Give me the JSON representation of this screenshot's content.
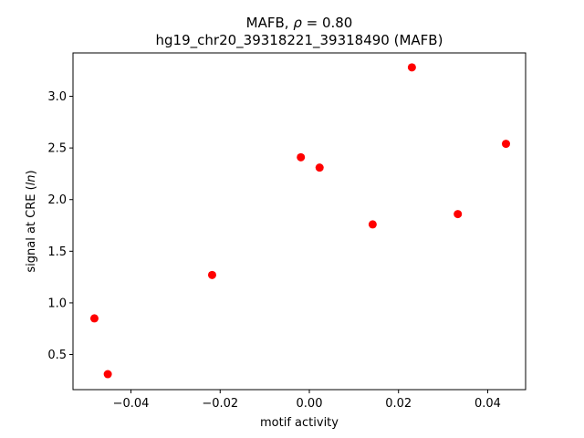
{
  "chart_data": {
    "type": "scatter",
    "title_main": "MAFB, ",
    "title_rho": "ρ",
    "title_eq": " = 0.80",
    "subtitle": "hg19_chr20_39318221_39318490 (MAFB)",
    "xlabel": "motif activity",
    "ylabel_prefix": "signal at CRE (",
    "ylabel_italic": "ln",
    "ylabel_suffix": ")",
    "xlim": [
      -0.053,
      0.0485
    ],
    "ylim": [
      0.16,
      3.42
    ],
    "xticks": [
      -0.04,
      -0.02,
      0.0,
      0.02,
      0.04
    ],
    "xtick_labels": [
      "−0.04",
      "−0.02",
      "0.00",
      "0.02",
      "0.04"
    ],
    "yticks": [
      0.5,
      1.0,
      1.5,
      2.0,
      2.5,
      3.0
    ],
    "ytick_labels": [
      "0.5",
      "1.0",
      "1.5",
      "2.0",
      "2.5",
      "3.0"
    ],
    "marker_color": "#ff0000",
    "grid": false,
    "points": [
      {
        "x": -0.0482,
        "y": 0.85
      },
      {
        "x": -0.0452,
        "y": 0.31
      },
      {
        "x": -0.0218,
        "y": 1.27
      },
      {
        "x": -0.0019,
        "y": 2.41
      },
      {
        "x": 0.0023,
        "y": 2.31
      },
      {
        "x": 0.0142,
        "y": 1.76
      },
      {
        "x": 0.023,
        "y": 3.28
      },
      {
        "x": 0.0333,
        "y": 1.86
      },
      {
        "x": 0.0441,
        "y": 2.54
      }
    ]
  }
}
